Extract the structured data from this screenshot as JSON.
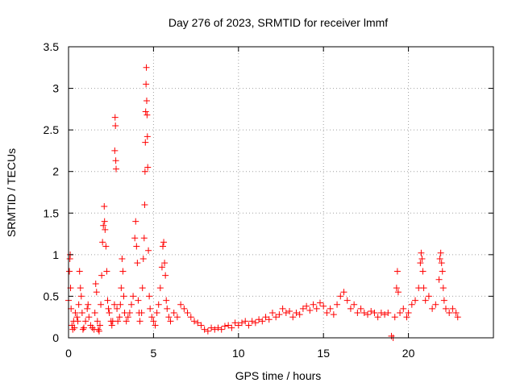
{
  "chart_data": {
    "type": "scatter",
    "title": "Day 276 of 2023, SRMTID for receiver lmmf",
    "xlabel": "GPS time / hours",
    "ylabel": "SRMTID / TECUs",
    "xlim": [
      0,
      25
    ],
    "ylim": [
      0,
      3.5
    ],
    "grid": true,
    "marker": "+",
    "series_color": "#ff0000",
    "x_ticks": [
      {
        "value": 0,
        "label": "0"
      },
      {
        "value": 5,
        "label": "5"
      },
      {
        "value": 10,
        "label": "10"
      },
      {
        "value": 15,
        "label": "15"
      },
      {
        "value": 20,
        "label": "20"
      }
    ],
    "y_ticks": [
      {
        "value": 0,
        "label": "0"
      },
      {
        "value": 0.5,
        "label": "0.5"
      },
      {
        "value": 1,
        "label": "1"
      },
      {
        "value": 1.5,
        "label": "1.5"
      },
      {
        "value": 2,
        "label": "2"
      },
      {
        "value": 2.5,
        "label": "2.5"
      },
      {
        "value": 3,
        "label": "3"
      },
      {
        "value": 3.5,
        "label": "3.5"
      }
    ],
    "series": [
      {
        "name": "SRMTID",
        "points": [
          [
            0.0,
            0.45
          ],
          [
            0.05,
            0.8
          ],
          [
            0.08,
            0.95
          ],
          [
            0.1,
            1.0
          ],
          [
            0.12,
            0.6
          ],
          [
            0.15,
            0.35
          ],
          [
            0.2,
            0.15
          ],
          [
            0.25,
            0.1
          ],
          [
            0.3,
            0.2
          ],
          [
            0.35,
            0.12
          ],
          [
            0.4,
            0.3
          ],
          [
            0.5,
            0.25
          ],
          [
            0.55,
            0.2
          ],
          [
            0.6,
            0.4
          ],
          [
            0.65,
            0.8
          ],
          [
            0.7,
            0.6
          ],
          [
            0.75,
            0.5
          ],
          [
            0.8,
            0.3
          ],
          [
            0.85,
            0.1
          ],
          [
            0.9,
            0.12
          ],
          [
            1.0,
            0.2
          ],
          [
            1.1,
            0.35
          ],
          [
            1.15,
            0.4
          ],
          [
            1.2,
            0.25
          ],
          [
            1.3,
            0.15
          ],
          [
            1.4,
            0.12
          ],
          [
            1.5,
            0.1
          ],
          [
            1.55,
            0.3
          ],
          [
            1.6,
            0.65
          ],
          [
            1.65,
            0.55
          ],
          [
            1.7,
            0.2
          ],
          [
            1.75,
            0.1
          ],
          [
            1.8,
            0.08
          ],
          [
            1.85,
            0.15
          ],
          [
            1.9,
            0.4
          ],
          [
            1.95,
            0.75
          ],
          [
            2.0,
            1.15
          ],
          [
            2.05,
            1.35
          ],
          [
            2.1,
            1.58
          ],
          [
            2.12,
            1.4
          ],
          [
            2.15,
            1.3
          ],
          [
            2.2,
            1.1
          ],
          [
            2.25,
            0.8
          ],
          [
            2.3,
            0.45
          ],
          [
            2.35,
            0.35
          ],
          [
            2.4,
            0.3
          ],
          [
            2.5,
            0.2
          ],
          [
            2.55,
            0.15
          ],
          [
            2.6,
            0.2
          ],
          [
            2.7,
            0.4
          ],
          [
            2.72,
            2.25
          ],
          [
            2.74,
            2.65
          ],
          [
            2.76,
            2.55
          ],
          [
            2.78,
            2.13
          ],
          [
            2.8,
            2.03
          ],
          [
            2.85,
            0.35
          ],
          [
            2.9,
            0.2
          ],
          [
            3.0,
            0.25
          ],
          [
            3.05,
            0.4
          ],
          [
            3.1,
            0.6
          ],
          [
            3.15,
            0.95
          ],
          [
            3.2,
            0.8
          ],
          [
            3.25,
            0.5
          ],
          [
            3.3,
            0.3
          ],
          [
            3.4,
            0.2
          ],
          [
            3.5,
            0.25
          ],
          [
            3.6,
            0.3
          ],
          [
            3.7,
            0.4
          ],
          [
            3.8,
            0.5
          ],
          [
            3.9,
            1.2
          ],
          [
            3.95,
            1.4
          ],
          [
            4.0,
            1.1
          ],
          [
            4.05,
            0.9
          ],
          [
            4.1,
            0.45
          ],
          [
            4.15,
            0.3
          ],
          [
            4.2,
            0.2
          ],
          [
            4.3,
            0.3
          ],
          [
            4.35,
            0.6
          ],
          [
            4.4,
            0.95
          ],
          [
            4.45,
            1.2
          ],
          [
            4.48,
            1.6
          ],
          [
            4.5,
            2.0
          ],
          [
            4.52,
            2.35
          ],
          [
            4.54,
            2.72
          ],
          [
            4.56,
            3.05
          ],
          [
            4.58,
            3.25
          ],
          [
            4.6,
            2.85
          ],
          [
            4.62,
            2.68
          ],
          [
            4.64,
            2.42
          ],
          [
            4.66,
            2.05
          ],
          [
            4.7,
            1.05
          ],
          [
            4.75,
            0.5
          ],
          [
            4.8,
            0.35
          ],
          [
            4.9,
            0.25
          ],
          [
            5.0,
            0.2
          ],
          [
            5.1,
            0.15
          ],
          [
            5.2,
            0.3
          ],
          [
            5.3,
            0.4
          ],
          [
            5.4,
            0.6
          ],
          [
            5.5,
            0.85
          ],
          [
            5.55,
            1.1
          ],
          [
            5.6,
            1.15
          ],
          [
            5.65,
            0.9
          ],
          [
            5.7,
            0.75
          ],
          [
            5.75,
            0.45
          ],
          [
            5.8,
            0.35
          ],
          [
            5.9,
            0.25
          ],
          [
            6.0,
            0.2
          ],
          [
            6.2,
            0.3
          ],
          [
            6.4,
            0.25
          ],
          [
            6.6,
            0.4
          ],
          [
            6.8,
            0.35
          ],
          [
            7.0,
            0.3
          ],
          [
            7.2,
            0.25
          ],
          [
            7.4,
            0.2
          ],
          [
            7.6,
            0.18
          ],
          [
            7.8,
            0.15
          ],
          [
            8.0,
            0.1
          ],
          [
            8.2,
            0.08
          ],
          [
            8.4,
            0.12
          ],
          [
            8.6,
            0.1
          ],
          [
            8.8,
            0.12
          ],
          [
            9.0,
            0.1
          ],
          [
            9.2,
            0.14
          ],
          [
            9.4,
            0.15
          ],
          [
            9.6,
            0.12
          ],
          [
            9.8,
            0.18
          ],
          [
            10.0,
            0.15
          ],
          [
            10.2,
            0.18
          ],
          [
            10.4,
            0.2
          ],
          [
            10.6,
            0.15
          ],
          [
            10.8,
            0.2
          ],
          [
            11.0,
            0.18
          ],
          [
            11.2,
            0.22
          ],
          [
            11.4,
            0.2
          ],
          [
            11.6,
            0.25
          ],
          [
            11.8,
            0.22
          ],
          [
            12.0,
            0.3
          ],
          [
            12.2,
            0.25
          ],
          [
            12.4,
            0.28
          ],
          [
            12.6,
            0.35
          ],
          [
            12.8,
            0.3
          ],
          [
            13.0,
            0.32
          ],
          [
            13.2,
            0.25
          ],
          [
            13.4,
            0.3
          ],
          [
            13.6,
            0.28
          ],
          [
            13.8,
            0.35
          ],
          [
            14.0,
            0.38
          ],
          [
            14.2,
            0.33
          ],
          [
            14.4,
            0.4
          ],
          [
            14.6,
            0.35
          ],
          [
            14.8,
            0.42
          ],
          [
            15.0,
            0.38
          ],
          [
            15.2,
            0.3
          ],
          [
            15.4,
            0.35
          ],
          [
            15.6,
            0.28
          ],
          [
            15.8,
            0.4
          ],
          [
            16.0,
            0.5
          ],
          [
            16.2,
            0.55
          ],
          [
            16.4,
            0.45
          ],
          [
            16.6,
            0.35
          ],
          [
            16.8,
            0.4
          ],
          [
            17.0,
            0.3
          ],
          [
            17.2,
            0.35
          ],
          [
            17.4,
            0.3
          ],
          [
            17.6,
            0.28
          ],
          [
            17.8,
            0.32
          ],
          [
            18.0,
            0.3
          ],
          [
            18.2,
            0.25
          ],
          [
            18.4,
            0.3
          ],
          [
            18.6,
            0.28
          ],
          [
            18.8,
            0.3
          ],
          [
            19.0,
            0.02
          ],
          [
            19.1,
            0.0
          ],
          [
            19.2,
            0.25
          ],
          [
            19.3,
            0.6
          ],
          [
            19.35,
            0.8
          ],
          [
            19.4,
            0.55
          ],
          [
            19.5,
            0.3
          ],
          [
            19.7,
            0.35
          ],
          [
            19.9,
            0.25
          ],
          [
            20.0,
            0.3
          ],
          [
            20.2,
            0.4
          ],
          [
            20.4,
            0.45
          ],
          [
            20.6,
            0.6
          ],
          [
            20.7,
            0.9
          ],
          [
            20.75,
            1.02
          ],
          [
            20.8,
            0.95
          ],
          [
            20.85,
            0.8
          ],
          [
            20.9,
            0.6
          ],
          [
            21.0,
            0.45
          ],
          [
            21.2,
            0.5
          ],
          [
            21.4,
            0.35
          ],
          [
            21.6,
            0.4
          ],
          [
            21.8,
            0.7
          ],
          [
            21.85,
            0.95
          ],
          [
            21.9,
            1.02
          ],
          [
            21.95,
            0.9
          ],
          [
            22.0,
            0.8
          ],
          [
            22.05,
            0.6
          ],
          [
            22.1,
            0.45
          ],
          [
            22.2,
            0.35
          ],
          [
            22.4,
            0.3
          ],
          [
            22.6,
            0.35
          ],
          [
            22.8,
            0.3
          ],
          [
            22.9,
            0.25
          ]
        ]
      }
    ]
  }
}
